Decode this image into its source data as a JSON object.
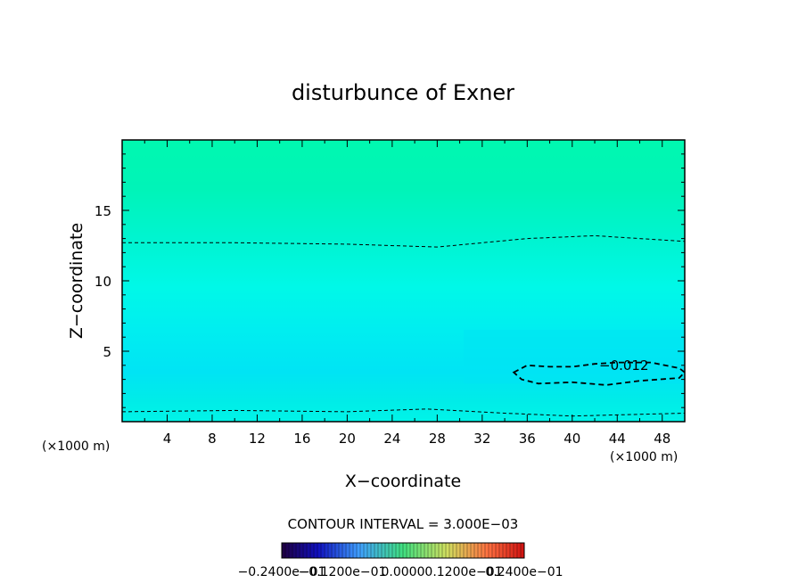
{
  "chart_data": {
    "type": "heatmap",
    "title": "disturbunce of Exner",
    "xlabel": "X−coordinate",
    "ylabel": "Z−coordinate",
    "x_units": "(×1000 m)",
    "x_units_right": "(×1000 m)",
    "xlim": [
      0,
      50
    ],
    "ylim": [
      0,
      20
    ],
    "x_ticks": [
      "4",
      "8",
      "12",
      "16",
      "20",
      "24",
      "28",
      "32",
      "36",
      "40",
      "44",
      "48"
    ],
    "y_ticks": [
      "5",
      "10",
      "15"
    ],
    "contour_interval_text": "CONTOUR INTERVAL = 3.000E−03",
    "contour_label": "−0.012",
    "colorbar_labels": [
      "−0.2400e−01",
      "−0.1200e−01",
      "0.0000",
      "0.1200e−01",
      "0.2400e−01"
    ],
    "colorbar_range": [
      -0.024,
      0.024
    ],
    "contours": [
      {
        "level": -0.009,
        "style": "thin-dashed",
        "points": [
          [
            0,
            0.7
          ],
          [
            10,
            0.8
          ],
          [
            20,
            0.7
          ],
          [
            27,
            0.9
          ],
          [
            34,
            0.6
          ],
          [
            40,
            0.4
          ],
          [
            50,
            0.6
          ]
        ]
      },
      {
        "level": -0.009,
        "style": "thin-dashed",
        "points": [
          [
            0,
            12.7
          ],
          [
            10,
            12.7
          ],
          [
            20,
            12.6
          ],
          [
            28,
            12.4
          ],
          [
            36,
            13.0
          ],
          [
            42,
            13.2
          ],
          [
            50,
            12.8
          ]
        ]
      },
      {
        "level": -0.012,
        "style": "thick-dashed",
        "closed": true,
        "points": [
          [
            34.8,
            3.5
          ],
          [
            36,
            4.0
          ],
          [
            38,
            3.9
          ],
          [
            40,
            3.9
          ],
          [
            42,
            4.1
          ],
          [
            44,
            4.2
          ],
          [
            47,
            4.2
          ],
          [
            49.5,
            3.8
          ],
          [
            50,
            3.5
          ],
          [
            49.5,
            3.1
          ],
          [
            46,
            2.9
          ],
          [
            43,
            2.6
          ],
          [
            40,
            2.8
          ],
          [
            37,
            2.7
          ],
          [
            35.5,
            3.0
          ]
        ]
      }
    ],
    "field_colors": [
      {
        "z": 0,
        "color": "#00f4e8"
      },
      {
        "z": 1.5,
        "color": "#00ece8"
      },
      {
        "z": 3.5,
        "color": "#00e4f4"
      },
      {
        "z": 6.5,
        "color": "#00eef0"
      },
      {
        "z": 9.5,
        "color": "#00f8e8"
      },
      {
        "z": 13.0,
        "color": "#00f4d0"
      },
      {
        "z": 16.5,
        "color": "#00f4b8"
      },
      {
        "z": 20,
        "color": "#00f8b0"
      }
    ]
  }
}
